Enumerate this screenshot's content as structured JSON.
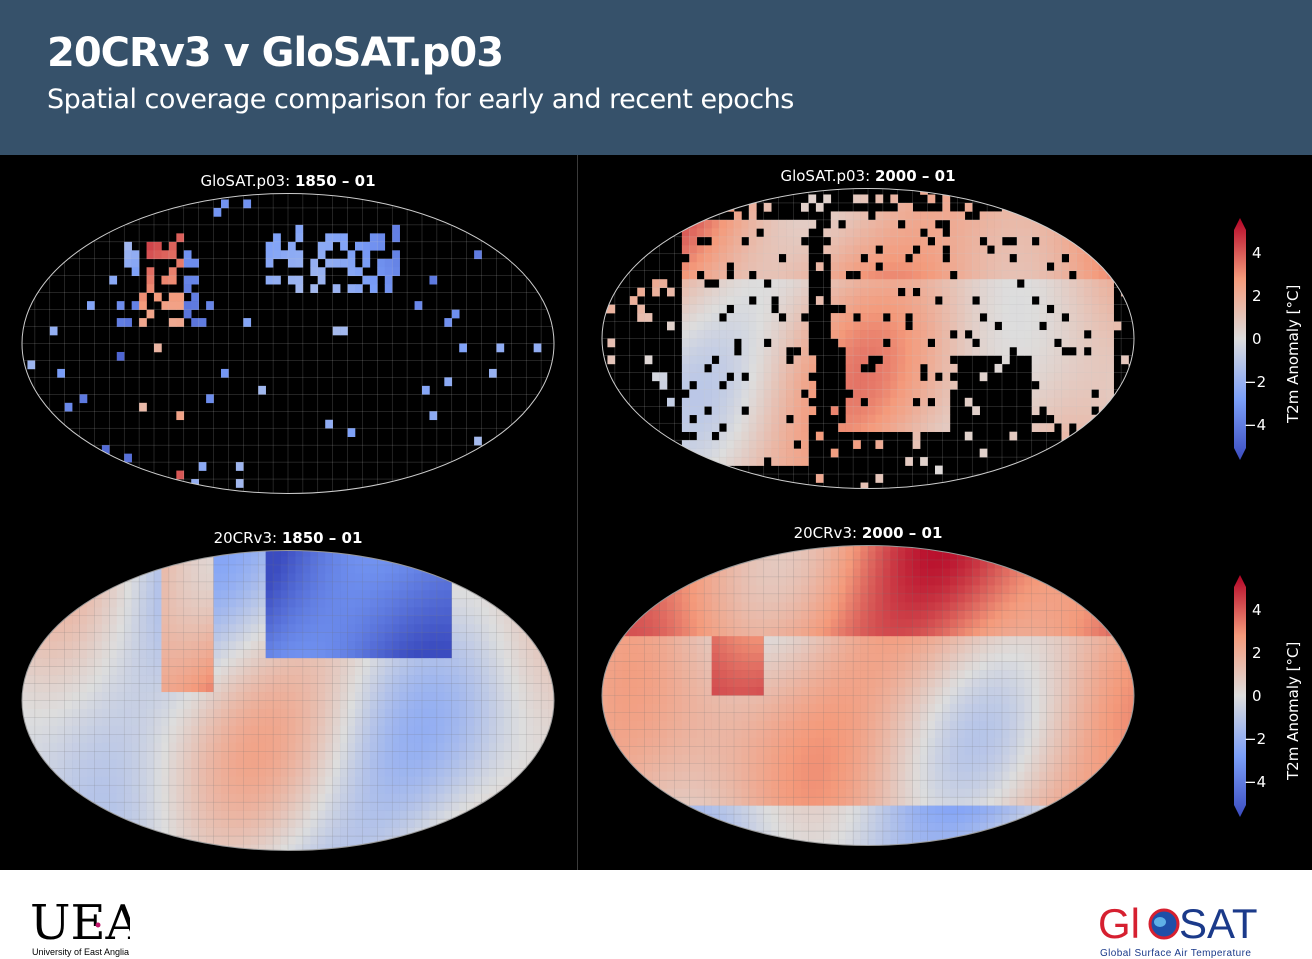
{
  "header": {
    "title": "20CRv3 v GloSAT.p03",
    "subtitle": "Spatial coverage comparison for early and recent epochs"
  },
  "panels": [
    {
      "dataset": "GloSAT.p03:",
      "epoch": "1850 – 01",
      "coverage": "sparse"
    },
    {
      "dataset": "GloSAT.p03:",
      "epoch": "2000 – 01",
      "coverage": "partial"
    },
    {
      "dataset": "20CRv3:",
      "epoch": "1850 – 01",
      "coverage": "full"
    },
    {
      "dataset": "20CRv3:",
      "epoch": "2000 – 01",
      "coverage": "full"
    }
  ],
  "colorbar": {
    "label": "T2m Anomaly [°C]",
    "ticks": [
      "4",
      "2",
      "0",
      "−2",
      "−4"
    ],
    "colormap": "coolwarm",
    "range": [
      -5,
      5
    ]
  },
  "colors": {
    "header_bg": "#36516a",
    "figure_bg": "#000000",
    "warm": "#b40426",
    "cool": "#3b4cc0",
    "neutral": "#dddddd"
  },
  "footer": {
    "uea_logo": "UEA",
    "uea_caption": "University of East Anglia",
    "glosat_logo_left": "Gl",
    "glosat_logo_right": "SAT",
    "glosat_caption": "Global Surface Air Temperature"
  }
}
